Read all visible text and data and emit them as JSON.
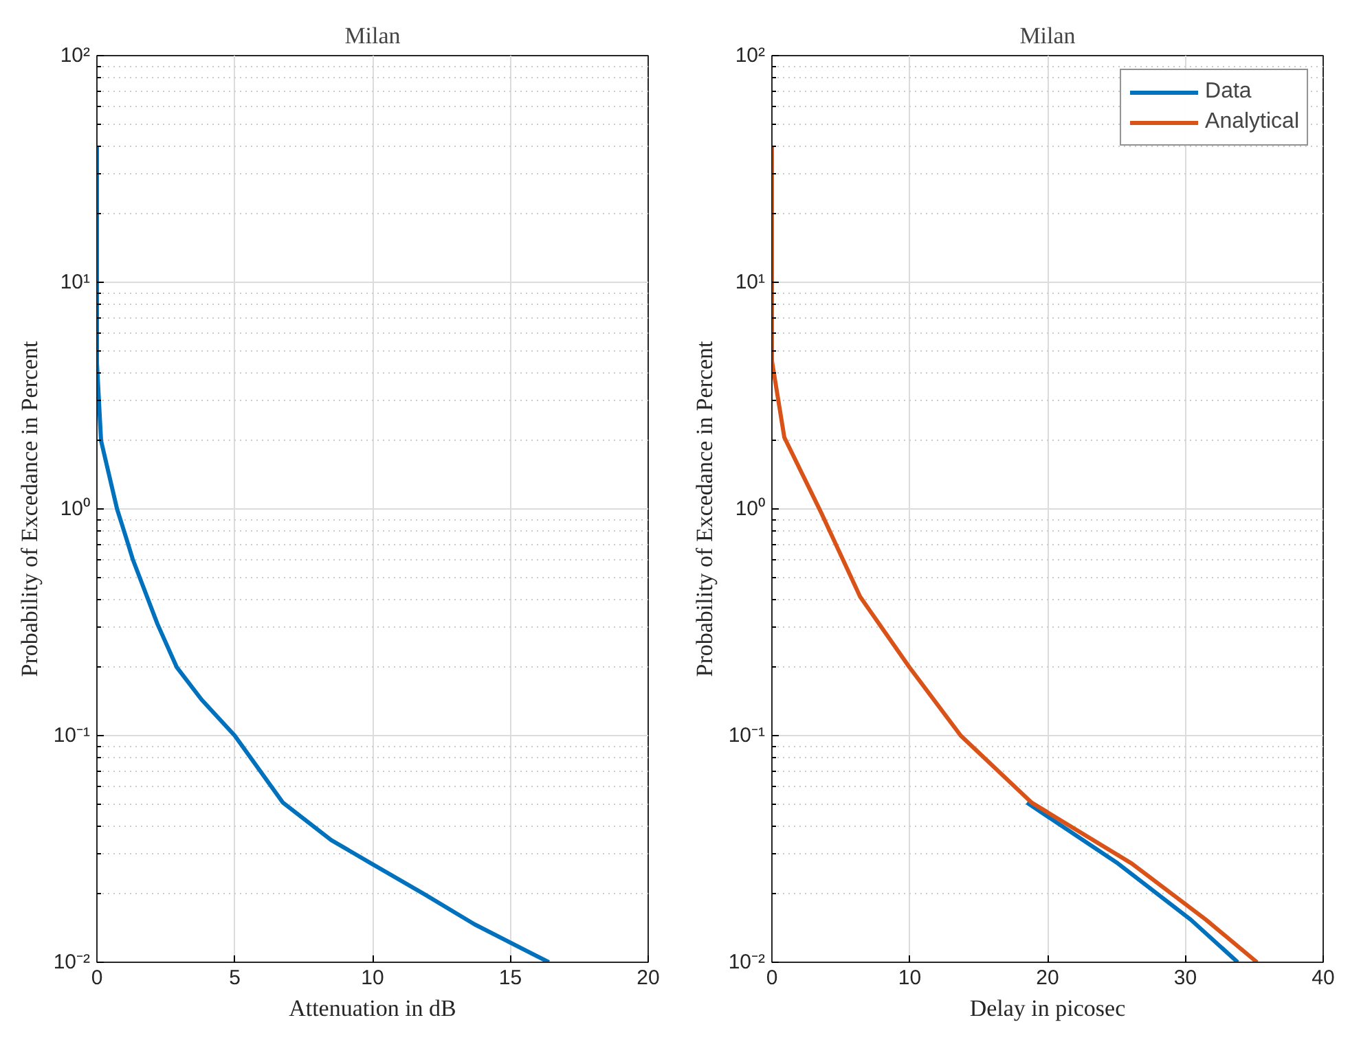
{
  "chart_data": [
    {
      "type": "line",
      "title": "Milan",
      "xlabel": "Attenuation in dB",
      "ylabel": "Probability of Excedance in Percent",
      "xlim": [
        0,
        20
      ],
      "xticks": [
        0,
        5,
        10,
        15,
        20
      ],
      "ylim": [
        0.01,
        100
      ],
      "yticks": [
        {
          "value": 0.01,
          "label": "10⁻²"
        },
        {
          "value": 0.1,
          "label": "10⁻¹"
        },
        {
          "value": 1,
          "label": "10⁰"
        },
        {
          "value": 10,
          "label": "10¹"
        },
        {
          "value": 100,
          "label": "10²"
        }
      ],
      "log": true,
      "grid": true,
      "legend": false,
      "series": [
        {
          "color": "#0072bd",
          "x": [
            0,
            0,
            0.15,
            0.73,
            1.04,
            1.3,
            2.2,
            2.9,
            3.8,
            5.0,
            6.75,
            8.5,
            9.95,
            11.9,
            13.7,
            16.4
          ],
          "values": [
            40,
            4.4,
            2.0,
            1.0,
            0.76,
            0.6,
            0.31,
            0.2,
            0.144,
            0.1,
            0.0506,
            0.0346,
            0.0273,
            0.0199,
            0.0147,
            0.01
          ]
        }
      ]
    },
    {
      "type": "line",
      "title": "Milan",
      "xlabel": "Delay in picosec",
      "ylabel": "Probability of Excedance in Percent",
      "xlim": [
        0,
        40
      ],
      "xticks": [
        0,
        10,
        20,
        30,
        40
      ],
      "ylim": [
        0.01,
        100
      ],
      "yticks": [
        {
          "value": 0.01,
          "label": "10⁻²"
        },
        {
          "value": 0.1,
          "label": "10⁻¹"
        },
        {
          "value": 1,
          "label": "10⁰"
        },
        {
          "value": 10,
          "label": "10¹"
        },
        {
          "value": 100,
          "label": "10²"
        }
      ],
      "log": true,
      "grid": true,
      "legend": "top right",
      "series": [
        {
          "name": "Data",
          "color": "#0072bd",
          "x": [
            18.5,
            25.1,
            30.4,
            33.8
          ],
          "values": [
            0.0506,
            0.0273,
            0.0154,
            0.01
          ]
        },
        {
          "name": "Analytical",
          "color": "#d95319",
          "x": [
            0,
            0,
            0.9,
            3.55,
            6.4,
            9.96,
            13.7,
            18.85,
            26.1,
            31.5,
            35.2
          ],
          "values": [
            40,
            4.5,
            2.07,
            0.97,
            0.41,
            0.201,
            0.1,
            0.0506,
            0.0273,
            0.0154,
            0.01
          ]
        }
      ]
    }
  ]
}
